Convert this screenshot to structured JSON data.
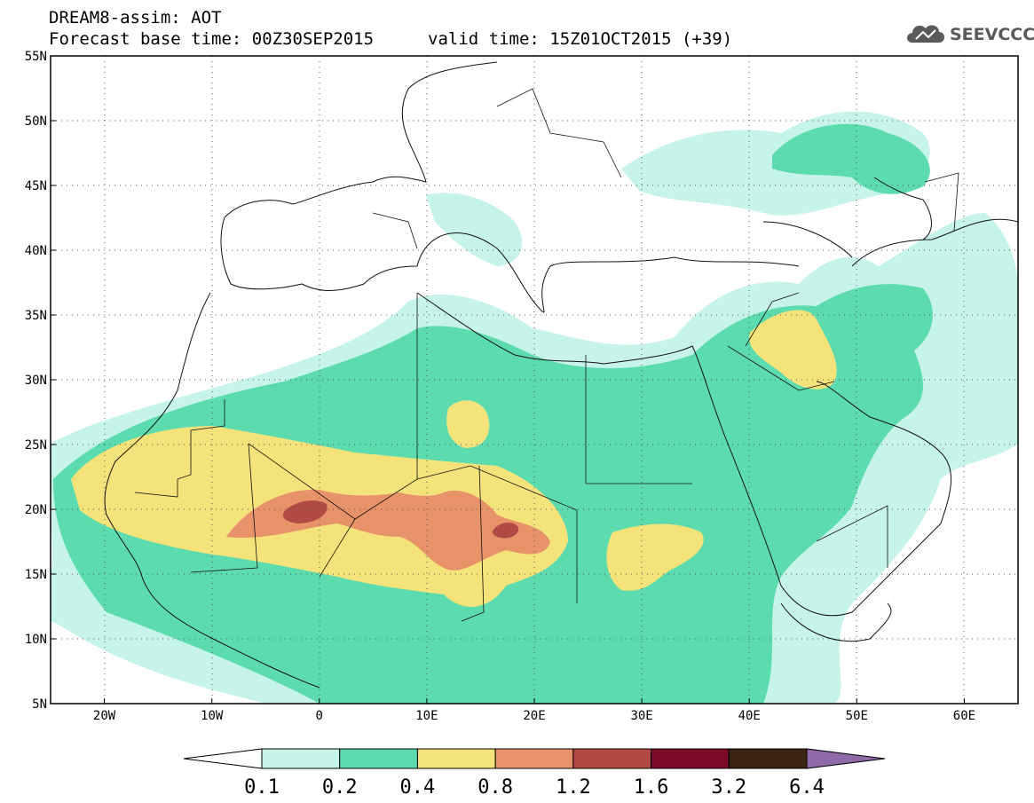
{
  "header": {
    "title_line1": "DREAM8-assim: AOT",
    "title_line2": "Forecast base time: 00Z30SEP2015",
    "valid_time": "valid time: 15Z01OCT2015 (+39)",
    "logo_text": "SEEVCCC"
  },
  "map": {
    "variable": "aerosol optical thickness",
    "lon_range": [
      -25,
      65
    ],
    "lat_range": [
      5,
      55
    ],
    "lat_labels": [
      "5N",
      "10N",
      "15N",
      "20N",
      "25N",
      "30N",
      "35N",
      "40N",
      "45N",
      "50N",
      "55N"
    ],
    "lon_labels": [
      "20W",
      "10W",
      "0",
      "10E",
      "20E",
      "30E",
      "40E",
      "50E",
      "60E"
    ],
    "gridlines": "dotted"
  },
  "colorbar": {
    "labels": [
      "0.1",
      "0.2",
      "0.4",
      "0.8",
      "1.2",
      "1.6",
      "3.2",
      "6.4"
    ],
    "colors": [
      "#ffffff",
      "#c6f3ea",
      "#5cdcae",
      "#f4e27a",
      "#e8926a",
      "#b04a42",
      "#7a0a28",
      "#3c2412",
      "#8e6aa8"
    ]
  },
  "colors": {
    "c1": "#c6f3ea",
    "c2": "#5cdcae",
    "c3": "#f4e27a",
    "c4": "#e8926a",
    "c5": "#b04a42"
  }
}
